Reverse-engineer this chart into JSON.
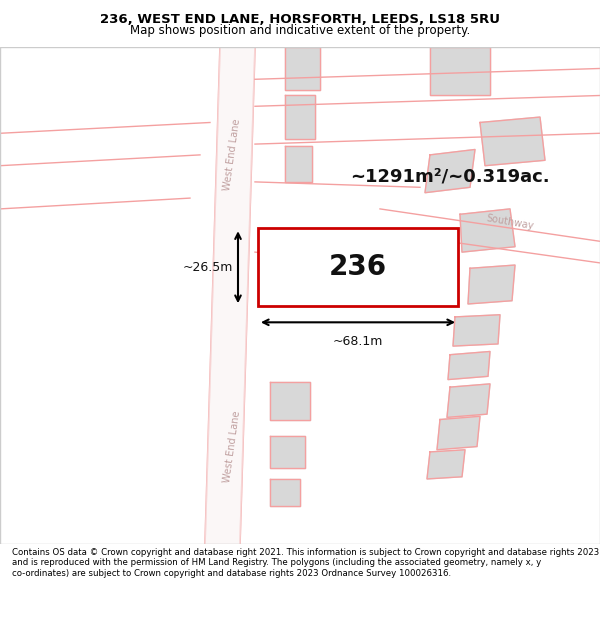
{
  "title_line1": "236, WEST END LANE, HORSFORTH, LEEDS, LS18 5RU",
  "title_line2": "Map shows position and indicative extent of the property.",
  "footer": "Contains OS data © Crown copyright and database right 2021. This information is subject to Crown copyright and database rights 2023 and is reproduced with the permission of HM Land Registry. The polygons (including the associated geometry, namely x, y co-ordinates) are subject to Crown copyright and database rights 2023 Ordnance Survey 100026316.",
  "area_text": "~1291m²/~0.319ac.",
  "dim_width": "~68.1m",
  "dim_height": "~26.5m",
  "property_number": "236",
  "road_label1": "West End Lane",
  "road_label2": "West End Lane",
  "road_label3": "Southway",
  "bg_color": "#ffffff",
  "map_bg": "#ffffff",
  "road_color": "#f4a0a0",
  "building_color": "#d8d8d8",
  "building_edge": "#f4a0a0",
  "property_fill": "#ffffff",
  "property_edge": "#cc0000",
  "dim_color": "#000000",
  "text_color": "#000000",
  "title_color": "#000000"
}
